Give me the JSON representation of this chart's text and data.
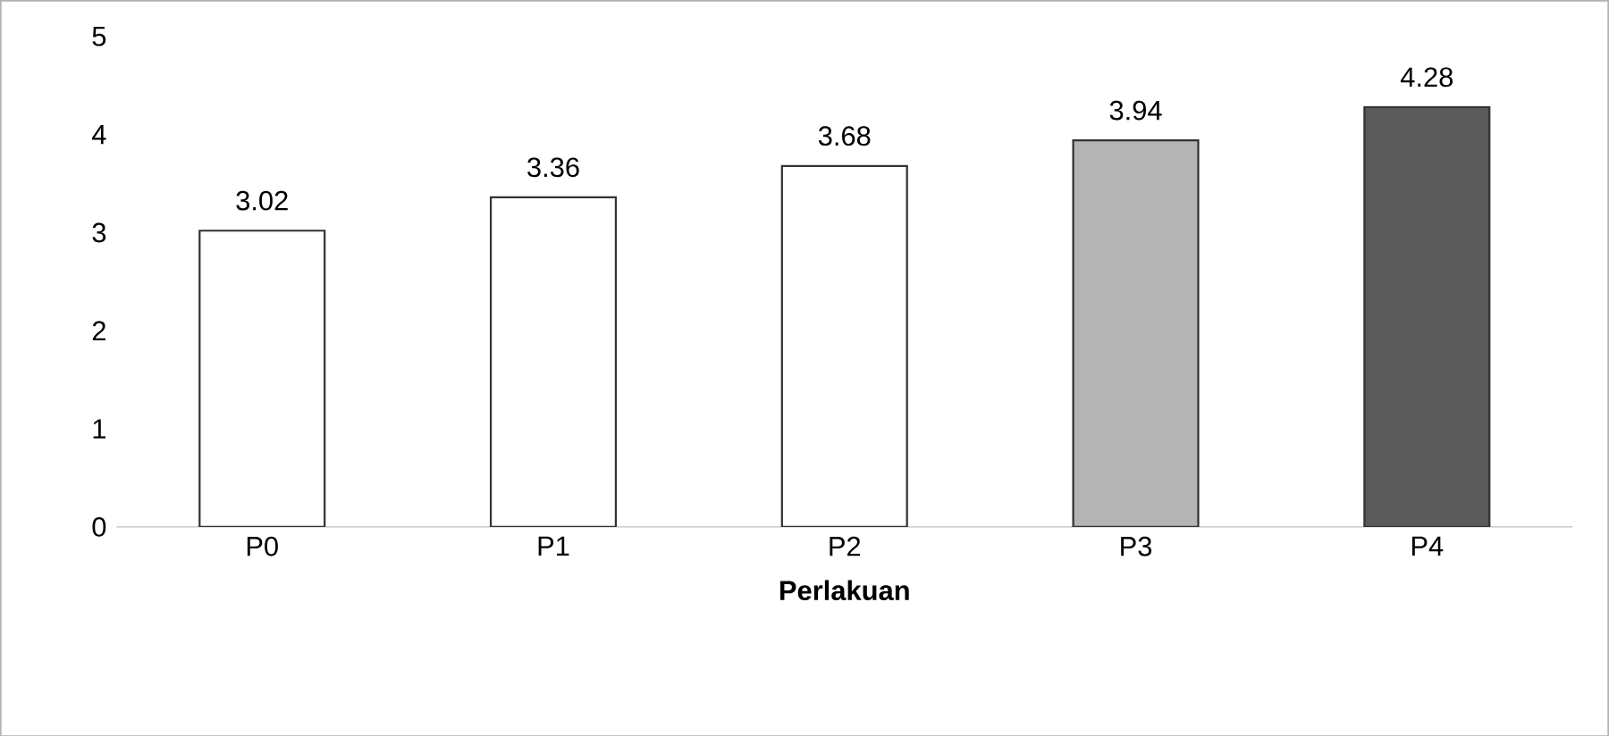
{
  "chart_data": {
    "type": "bar",
    "xlabel": "Perlakuan",
    "categories": [
      "P0",
      "P1",
      "P2",
      "P3",
      "P4"
    ],
    "values": [
      3.02,
      3.36,
      3.68,
      3.94,
      4.28
    ],
    "colors": [
      "#ffffff",
      "#ffffff",
      "#ffffff",
      "#b4b4b4",
      "#5a5a5a"
    ],
    "ylim": [
      0,
      5
    ],
    "yticks": [
      0,
      1,
      2,
      3,
      4,
      5
    ],
    "data_labels": true
  }
}
